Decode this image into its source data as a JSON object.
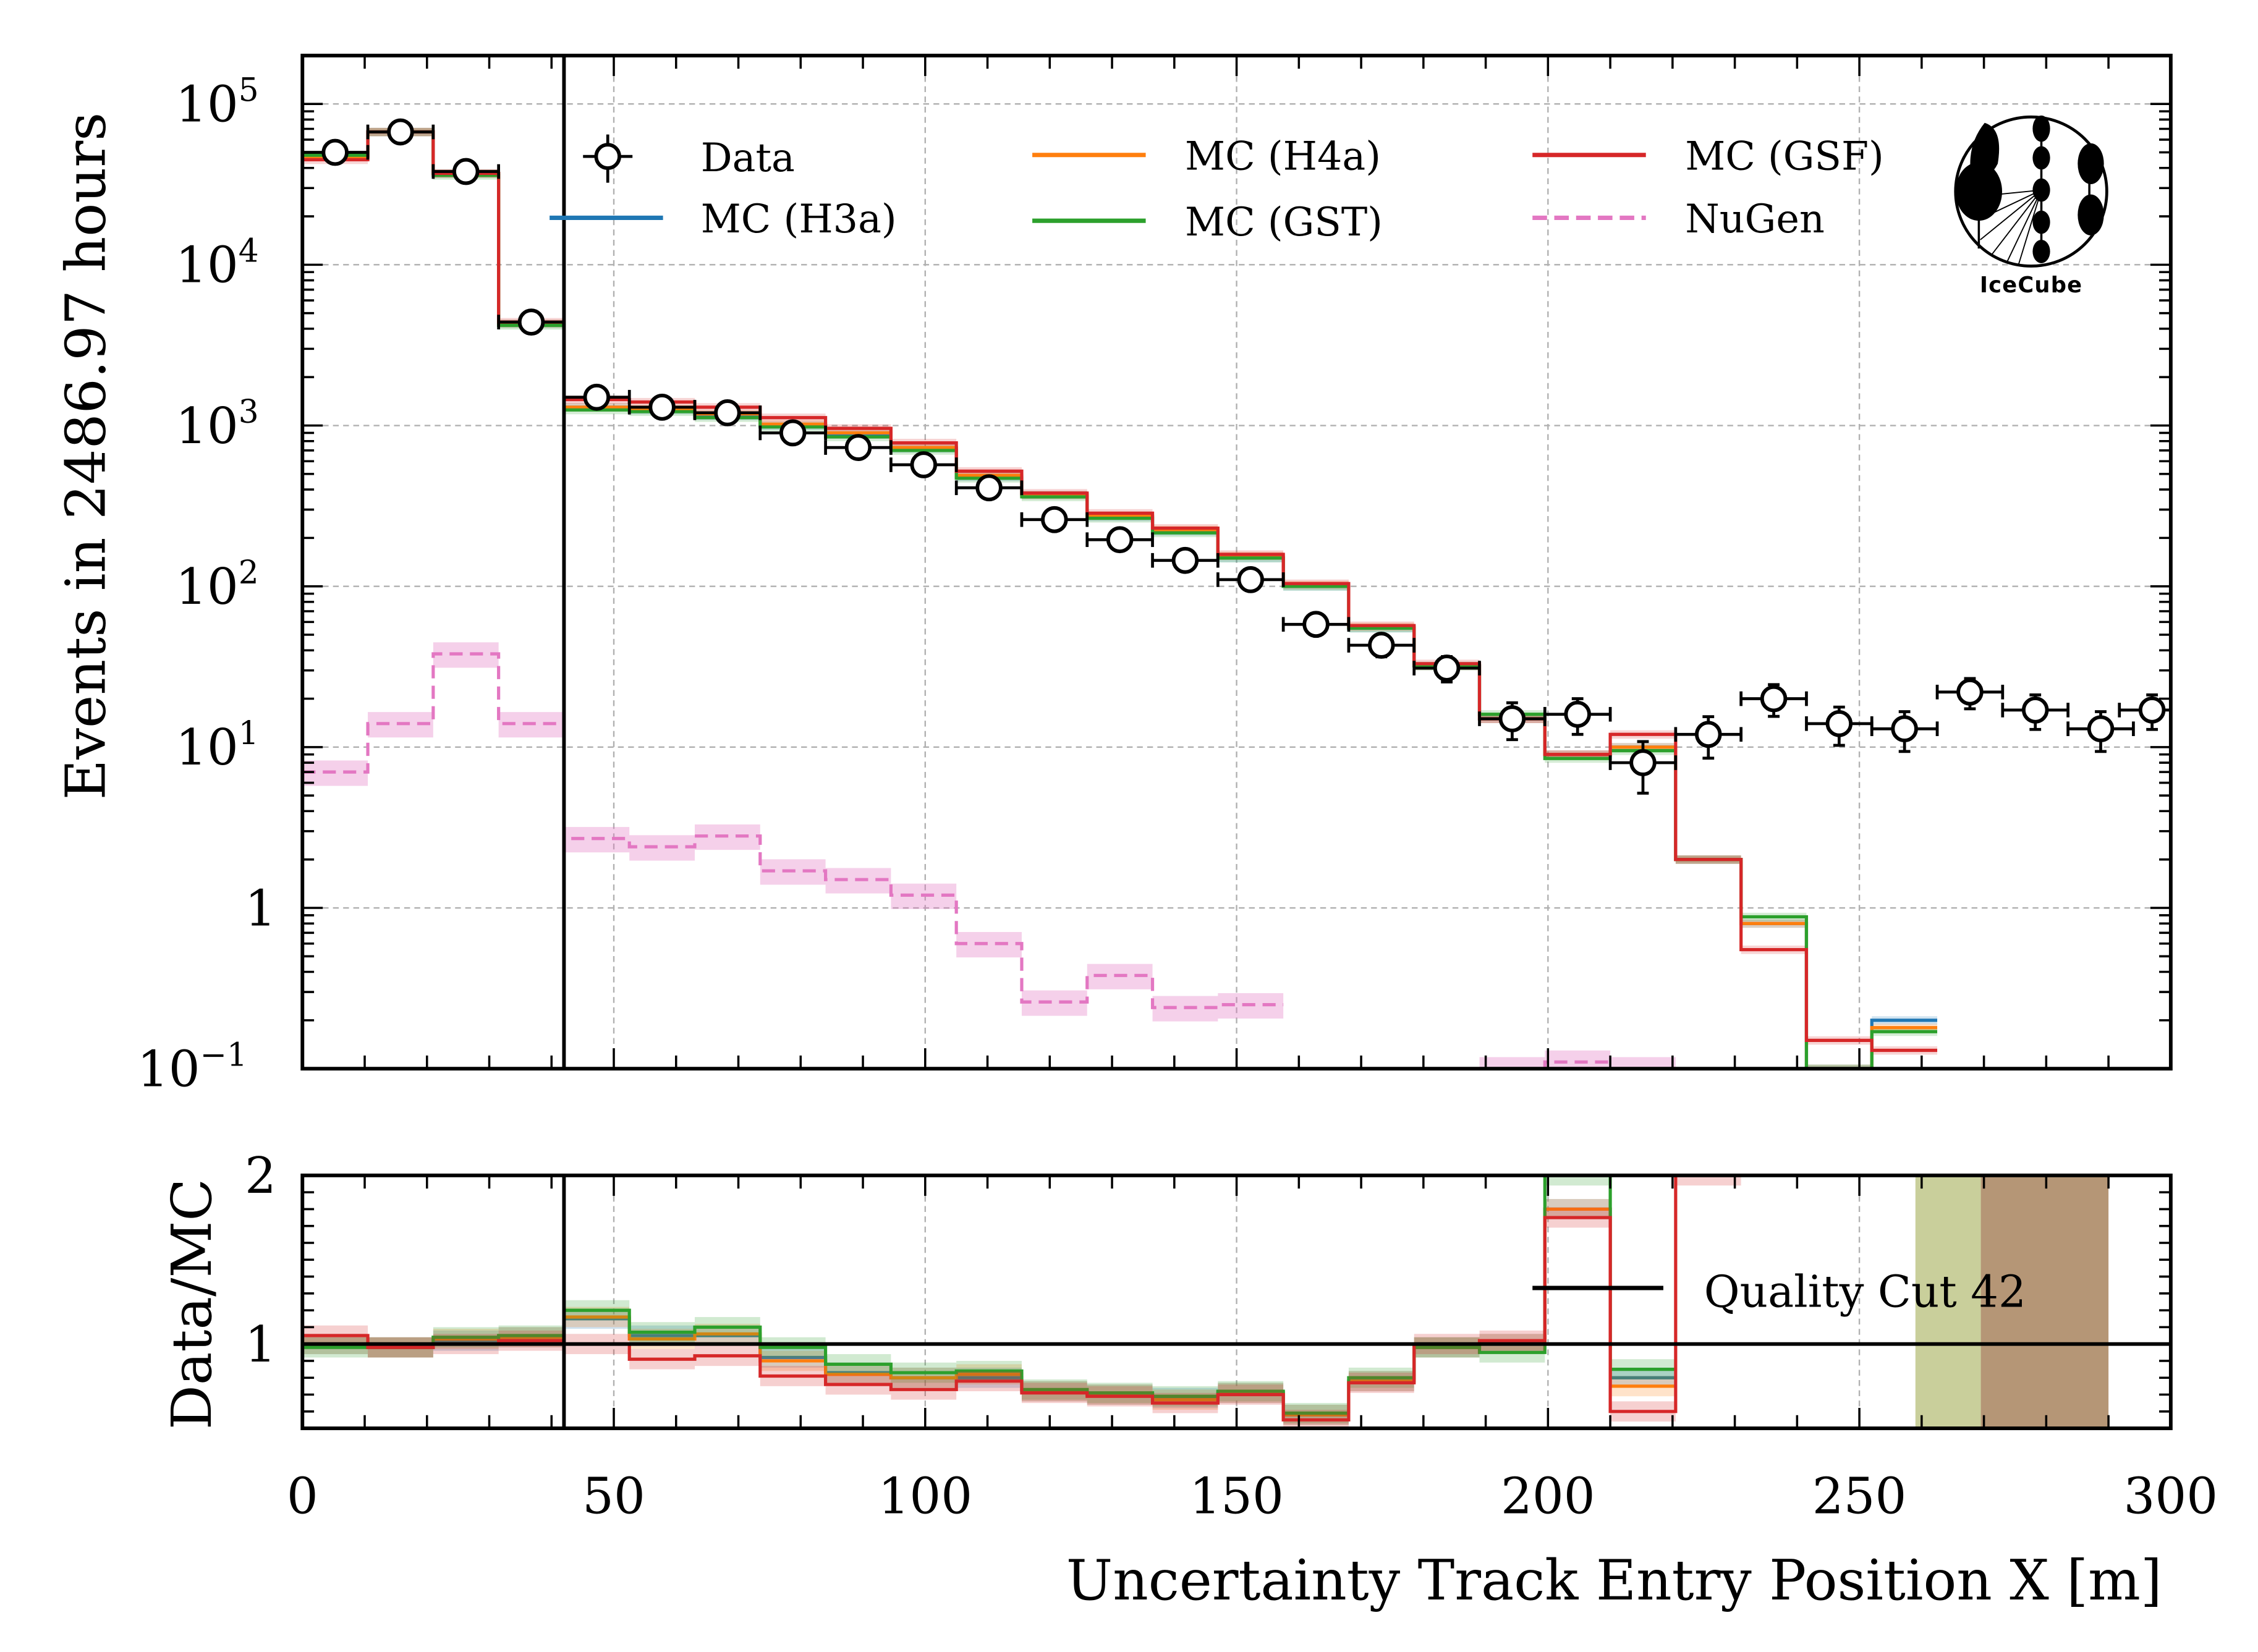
{
  "chart_data": [
    {
      "type": "line",
      "panel": "main",
      "title": "",
      "xlabel": "Uncertainty Track Entry Position X [m]",
      "ylabel": "Events in 2486.97 hours",
      "xlim": [
        0,
        300
      ],
      "ylim": [
        0.1,
        200000
      ],
      "yscale": "log",
      "grid": true,
      "x_ticks": [
        0,
        50,
        100,
        150,
        200,
        250,
        300
      ],
      "y_ticks": [
        {
          "value": 100000,
          "base": "10",
          "exp": "5"
        },
        {
          "value": 10000,
          "base": "10",
          "exp": "4"
        },
        {
          "value": 1000,
          "base": "10",
          "exp": "3"
        },
        {
          "value": 100,
          "base": "10",
          "exp": "2"
        },
        {
          "value": 10,
          "base": "10",
          "exp": "1"
        },
        {
          "value": 1,
          "base": "1",
          "exp": ""
        },
        {
          "value": 0.1,
          "base": "10",
          "exp": "−1"
        }
      ],
      "bin_edges": [
        0,
        10.5,
        21,
        31.5,
        42,
        52.5,
        63,
        73.5,
        84,
        94.5,
        105,
        115.5,
        126,
        136.5,
        147,
        157.5,
        168,
        178.5,
        189,
        199.5,
        210,
        220.5,
        231,
        241.5,
        252,
        262.5,
        273,
        283.5,
        294,
        300
      ],
      "cut_line_x": 42,
      "series": [
        {
          "name": "Data",
          "style": "points",
          "color": "#000000",
          "x": [
            5.25,
            15.75,
            26.25,
            36.75,
            47.25,
            57.75,
            68.25,
            78.75,
            89.25,
            99.75,
            110.25,
            120.75,
            131.25,
            141.75,
            152.25,
            162.75,
            173.25,
            183.75,
            194.25,
            204.75,
            215.25,
            225.75,
            236.25,
            246.75,
            257.25,
            267.75,
            278.25,
            288.75,
            297
          ],
          "values": [
            50000,
            67000,
            38000,
            4400,
            1500,
            1300,
            1200,
            900,
            730,
            570,
            410,
            260,
            195,
            145,
            110,
            58,
            43,
            31,
            15,
            16,
            8,
            12,
            20,
            14,
            13,
            22,
            17,
            13,
            17
          ]
        },
        {
          "name": "MC (H3a)",
          "style": "step",
          "color": "#1f77b4",
          "values": [
            47000,
            67000,
            37000,
            4300,
            1300,
            1250,
            1150,
            1000,
            880,
            720,
            480,
            370,
            270,
            220,
            150,
            100,
            55,
            32,
            15,
            9,
            10,
            2.0,
            0.8,
            0.1,
            0.2,
            null,
            null,
            null,
            null
          ]
        },
        {
          "name": "MC (H4a)",
          "style": "step",
          "color": "#ff7f0e",
          "values": [
            47000,
            67000,
            37000,
            4300,
            1300,
            1270,
            1180,
            1020,
            900,
            730,
            490,
            370,
            275,
            225,
            155,
            102,
            56,
            32,
            15,
            9,
            10,
            2.0,
            0.8,
            0.1,
            0.18,
            null,
            null,
            null,
            null
          ]
        },
        {
          "name": "MC (GST)",
          "style": "step",
          "color": "#2ca02c",
          "values": [
            48000,
            67000,
            36000,
            4200,
            1250,
            1220,
            1120,
            980,
            850,
            700,
            470,
            360,
            265,
            215,
            150,
            100,
            55,
            32,
            16,
            8.5,
            9.5,
            2.0,
            0.88,
            0.1,
            0.17,
            null,
            null,
            null,
            null
          ]
        },
        {
          "name": "MC (GSF)",
          "style": "step",
          "color": "#d62728",
          "values": [
            45000,
            67000,
            37000,
            4400,
            1450,
            1400,
            1300,
            1120,
            960,
            780,
            520,
            380,
            285,
            230,
            158,
            104,
            57,
            33,
            15,
            9,
            12,
            2.0,
            0.55,
            0.15,
            0.13,
            null,
            null,
            null,
            null
          ]
        },
        {
          "name": "NuGen",
          "style": "step-dashed",
          "color": "#e377c2",
          "values": [
            7,
            14,
            38,
            14,
            2.7,
            2.4,
            2.8,
            1.7,
            1.5,
            1.2,
            0.6,
            0.26,
            0.38,
            0.24,
            0.25,
            null,
            null,
            null,
            0.1,
            0.11,
            0.1,
            null,
            null,
            null,
            null,
            null,
            null,
            null,
            null
          ]
        }
      ],
      "legend": {
        "placement": "top",
        "entries": [
          {
            "label": "Data",
            "kind": "point"
          },
          {
            "label": "MC (H3a)",
            "kind": "line",
            "color": "#1f77b4"
          },
          {
            "label": "MC (H4a)",
            "kind": "line",
            "color": "#ff7f0e"
          },
          {
            "label": "MC (GST)",
            "kind": "line",
            "color": "#2ca02c"
          },
          {
            "label": "MC (GSF)",
            "kind": "line",
            "color": "#d62728"
          },
          {
            "label": "NuGen",
            "kind": "dashed",
            "color": "#e377c2"
          }
        ]
      },
      "logo_text": "IceCube"
    },
    {
      "type": "line",
      "panel": "ratio",
      "xlabel": "Uncertainty Track Entry Position X [m]",
      "ylabel": "Data/MC",
      "xlim": [
        0,
        300
      ],
      "ylim": [
        0.5,
        2
      ],
      "y_ticks": [
        1,
        2
      ],
      "reference_line": 1,
      "annotation": "Quality Cut 42",
      "series": [
        {
          "name": "Data/MC (H3a)",
          "color": "#1f77b4",
          "values": [
            1.0,
            0.98,
            1.02,
            1.04,
            1.15,
            1.05,
            1.05,
            0.92,
            0.83,
            0.8,
            0.8,
            0.72,
            0.7,
            0.68,
            0.71,
            0.58,
            0.78,
            0.98,
            1.0,
            1.8,
            0.8,
            null,
            null,
            null,
            null,
            null,
            null,
            null,
            null
          ]
        },
        {
          "name": "Data/MC (H4a)",
          "color": "#ff7f0e",
          "values": [
            1.0,
            0.98,
            1.03,
            1.04,
            1.16,
            1.03,
            1.06,
            0.9,
            0.82,
            0.8,
            0.82,
            0.72,
            0.7,
            0.67,
            0.71,
            0.58,
            0.78,
            0.98,
            1.0,
            1.8,
            0.75,
            null,
            null,
            null,
            null,
            null,
            null,
            null,
            null
          ]
        },
        {
          "name": "Data/MC (GST)",
          "color": "#2ca02c",
          "values": [
            0.98,
            0.98,
            1.04,
            1.05,
            1.2,
            1.07,
            1.1,
            0.98,
            0.88,
            0.83,
            0.84,
            0.73,
            0.71,
            0.69,
            0.72,
            0.59,
            0.8,
            0.98,
            0.95,
            2.0,
            0.85,
            null,
            null,
            null,
            null,
            null,
            null,
            null,
            null
          ]
        },
        {
          "name": "Data/MC (GSF)",
          "color": "#d62728",
          "values": [
            1.05,
            0.98,
            1.0,
            1.02,
            1.0,
            0.91,
            0.93,
            0.81,
            0.76,
            0.73,
            0.78,
            0.71,
            0.69,
            0.65,
            0.7,
            0.55,
            0.77,
            1.0,
            1.02,
            1.75,
            0.6,
            2.0,
            null,
            null,
            null,
            null,
            null,
            null,
            null
          ]
        }
      ],
      "shaded_bins": [
        {
          "x_range": [
            259,
            269.5
          ],
          "color": "#c9cf9b"
        },
        {
          "x_range": [
            269.5,
            290
          ],
          "color": "#b59676"
        }
      ]
    }
  ]
}
